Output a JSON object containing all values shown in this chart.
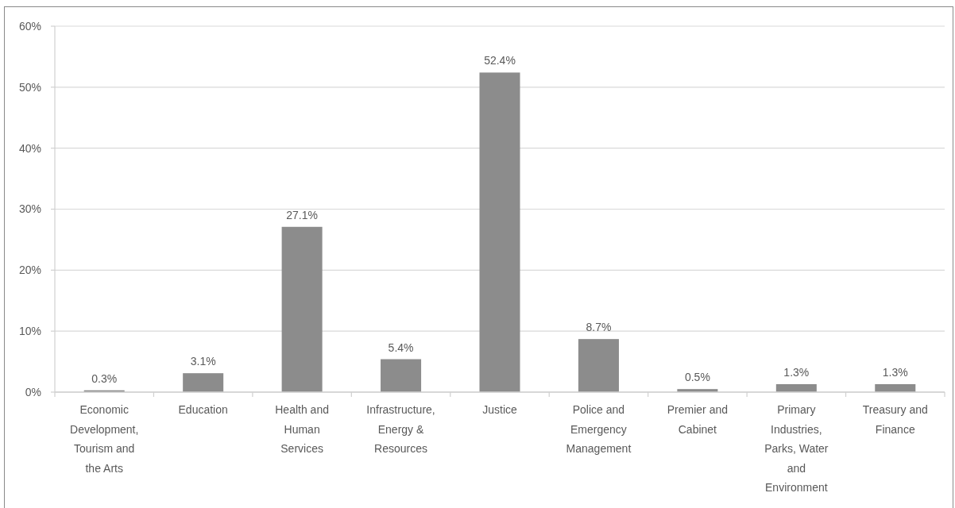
{
  "chart_data": {
    "type": "bar",
    "categories": [
      "Economic Development, Tourism and the Arts",
      "Education",
      "Health and Human Services",
      "Infrastructure, Energy & Resources",
      "Justice",
      "Police and Emergency Management",
      "Premier and Cabinet",
      "Primary Industries, Parks, Water and Environment",
      "Treasury and Finance"
    ],
    "values": [
      0.3,
      3.1,
      27.1,
      5.4,
      52.4,
      8.7,
      0.5,
      1.3,
      1.3
    ],
    "value_labels": [
      "0.3%",
      "3.1%",
      "27.1%",
      "5.4%",
      "52.4%",
      "8.7%",
      "0.5%",
      "1.3%",
      "1.3%"
    ],
    "color": "#8c8c8c",
    "ylim": [
      0,
      60
    ],
    "yticks": [
      {
        "value": 0,
        "label": "0%"
      },
      {
        "value": 10,
        "label": "10%"
      },
      {
        "value": 20,
        "label": "20%"
      },
      {
        "value": 30,
        "label": "30%"
      },
      {
        "value": 40,
        "label": "40%"
      },
      {
        "value": 50,
        "label": "50%"
      },
      {
        "value": 60,
        "label": "60%"
      }
    ],
    "grid": "y"
  }
}
